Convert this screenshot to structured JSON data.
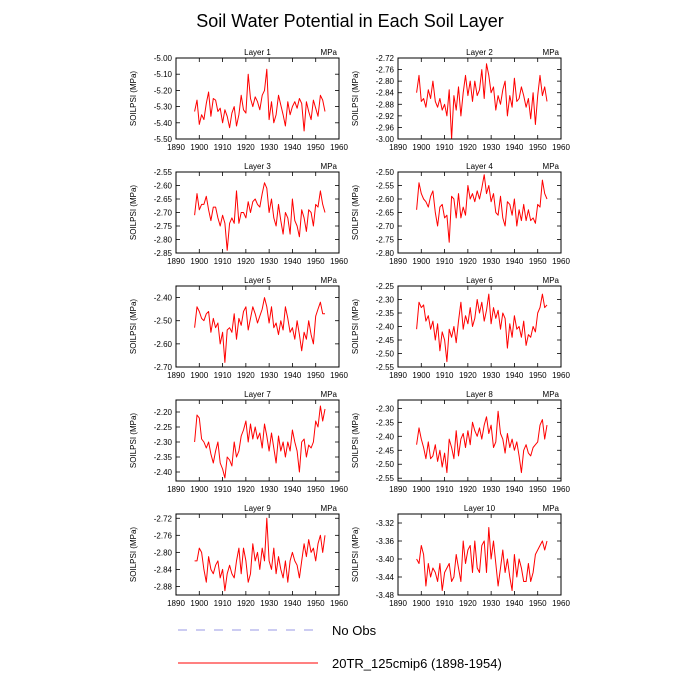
{
  "title": "Soil Water Potential in Each Soil Layer",
  "legend": {
    "items": [
      {
        "label": "No Obs",
        "color": "#9a9ae6",
        "style": "dashed"
      },
      {
        "label": "20TR_125cmip6 (1898-1954)",
        "color": "#ff0000",
        "style": "solid"
      }
    ]
  },
  "chart_data": [
    {
      "type": "line",
      "title": "Layer 1",
      "units": "MPa",
      "ylabel": "SOILPSI  (MPa)",
      "xlim": [
        1890,
        1960
      ],
      "xticks": [
        1890,
        1900,
        1910,
        1920,
        1930,
        1940,
        1950,
        1960
      ],
      "ylim": [
        -5.5,
        -5.0
      ],
      "yticks": [
        -5.5,
        -5.4,
        -5.3,
        -5.2,
        -5.1,
        -5.0
      ],
      "ytick_labels": [
        "-5.50",
        "-5.40",
        "-5.30",
        "-5.20",
        "-5.10",
        "-5.00"
      ],
      "series": [
        {
          "name": "20TR_125cmip6 (1898-1954)",
          "color": "#ff0000",
          "x_start": 1898,
          "values": [
            -5.33,
            -5.26,
            -5.41,
            -5.35,
            -5.38,
            -5.28,
            -5.21,
            -5.36,
            -5.25,
            -5.26,
            -5.33,
            -5.31,
            -5.4,
            -5.32,
            -5.36,
            -5.43,
            -5.34,
            -5.3,
            -5.42,
            -5.35,
            -5.23,
            -5.32,
            -5.34,
            -5.1,
            -5.25,
            -5.3,
            -5.24,
            -5.27,
            -5.32,
            -5.23,
            -5.2,
            -5.07,
            -5.38,
            -5.27,
            -5.4,
            -5.35,
            -5.23,
            -5.29,
            -5.35,
            -5.42,
            -5.27,
            -5.35,
            -5.3,
            -5.27,
            -5.31,
            -5.25,
            -5.28,
            -5.45,
            -5.27,
            -5.33,
            -5.38,
            -5.26,
            -5.31,
            -5.36,
            -5.23,
            -5.26,
            -5.33
          ]
        }
      ]
    },
    {
      "type": "line",
      "title": "Layer 2",
      "units": "MPa",
      "ylabel": "SOILPSI  (MPa)",
      "xlim": [
        1890,
        1960
      ],
      "xticks": [
        1890,
        1900,
        1910,
        1920,
        1930,
        1940,
        1950,
        1960
      ],
      "ylim": [
        -3.0,
        -2.72
      ],
      "yticks": [
        -3.0,
        -2.96,
        -2.92,
        -2.88,
        -2.84,
        -2.8,
        -2.76,
        -2.72
      ],
      "ytick_labels": [
        "-3.00",
        "-2.96",
        "-2.92",
        "-2.88",
        "-2.84",
        "-2.80",
        "-2.76",
        "-2.72"
      ],
      "series": [
        {
          "name": "20TR_125cmip6 (1898-1954)",
          "color": "#ff0000",
          "x_start": 1898,
          "values": [
            -2.84,
            -2.78,
            -2.87,
            -2.86,
            -2.89,
            -2.83,
            -2.86,
            -2.8,
            -2.87,
            -2.89,
            -2.86,
            -2.9,
            -2.88,
            -2.92,
            -2.83,
            -3.0,
            -2.85,
            -2.9,
            -2.82,
            -2.92,
            -2.84,
            -2.78,
            -2.85,
            -2.8,
            -2.87,
            -2.8,
            -2.85,
            -2.83,
            -2.76,
            -2.86,
            -2.74,
            -2.78,
            -2.84,
            -2.82,
            -2.9,
            -2.85,
            -2.88,
            -2.83,
            -2.8,
            -2.92,
            -2.85,
            -2.89,
            -2.79,
            -2.87,
            -2.86,
            -2.82,
            -2.85,
            -2.89,
            -2.86,
            -2.93,
            -2.84,
            -2.95,
            -2.85,
            -2.78,
            -2.85,
            -2.82,
            -2.87
          ]
        }
      ]
    },
    {
      "type": "line",
      "title": "Layer 3",
      "units": "MPa",
      "ylabel": "SOILPSI  (MPa)",
      "xlim": [
        1890,
        1960
      ],
      "xticks": [
        1890,
        1900,
        1910,
        1920,
        1930,
        1940,
        1950,
        1960
      ],
      "ylim": [
        -2.85,
        -2.55
      ],
      "yticks": [
        -2.85,
        -2.8,
        -2.75,
        -2.7,
        -2.65,
        -2.6,
        -2.55
      ],
      "ytick_labels": [
        "-2.85",
        "-2.80",
        "-2.75",
        "-2.70",
        "-2.65",
        "-2.60",
        "-2.55"
      ],
      "series": [
        {
          "name": "20TR_125cmip6 (1898-1954)",
          "color": "#ff0000",
          "x_start": 1898,
          "values": [
            -2.71,
            -2.63,
            -2.69,
            -2.67,
            -2.67,
            -2.64,
            -2.69,
            -2.73,
            -2.68,
            -2.68,
            -2.72,
            -2.75,
            -2.71,
            -2.74,
            -2.84,
            -2.74,
            -2.72,
            -2.74,
            -2.62,
            -2.74,
            -2.7,
            -2.7,
            -2.72,
            -2.66,
            -2.7,
            -2.66,
            -2.65,
            -2.67,
            -2.68,
            -2.63,
            -2.59,
            -2.61,
            -2.7,
            -2.65,
            -2.72,
            -2.75,
            -2.67,
            -2.73,
            -2.78,
            -2.7,
            -2.72,
            -2.78,
            -2.65,
            -2.73,
            -2.75,
            -2.79,
            -2.69,
            -2.72,
            -2.77,
            -2.69,
            -2.7,
            -2.75,
            -2.67,
            -2.68,
            -2.62,
            -2.67,
            -2.7
          ]
        }
      ]
    },
    {
      "type": "line",
      "title": "Layer 4",
      "units": "MPa",
      "ylabel": "SOILPSI  (MPa)",
      "xlim": [
        1890,
        1960
      ],
      "xticks": [
        1890,
        1900,
        1910,
        1920,
        1930,
        1940,
        1950,
        1960
      ],
      "ylim": [
        -2.8,
        -2.5
      ],
      "yticks": [
        -2.8,
        -2.75,
        -2.7,
        -2.65,
        -2.6,
        -2.55,
        -2.5
      ],
      "ytick_labels": [
        "-2.80",
        "-2.75",
        "-2.70",
        "-2.65",
        "-2.60",
        "-2.55",
        "-2.50"
      ],
      "series": [
        {
          "name": "20TR_125cmip6 (1898-1954)",
          "color": "#ff0000",
          "x_start": 1898,
          "values": [
            -2.64,
            -2.54,
            -2.58,
            -2.6,
            -2.61,
            -2.63,
            -2.59,
            -2.57,
            -2.65,
            -2.7,
            -2.63,
            -2.62,
            -2.67,
            -2.66,
            -2.76,
            -2.59,
            -2.6,
            -2.67,
            -2.58,
            -2.67,
            -2.63,
            -2.66,
            -2.55,
            -2.6,
            -2.58,
            -2.61,
            -2.57,
            -2.6,
            -2.56,
            -2.51,
            -2.58,
            -2.55,
            -2.61,
            -2.58,
            -2.65,
            -2.66,
            -2.59,
            -2.67,
            -2.7,
            -2.61,
            -2.62,
            -2.66,
            -2.6,
            -2.7,
            -2.64,
            -2.68,
            -2.62,
            -2.68,
            -2.64,
            -2.68,
            -2.67,
            -2.69,
            -2.62,
            -2.63,
            -2.53,
            -2.58,
            -2.6
          ]
        }
      ]
    },
    {
      "type": "line",
      "title": "Layer 5",
      "units": "MPa",
      "ylabel": "SOILPSI  (MPa)",
      "xlim": [
        1890,
        1960
      ],
      "xticks": [
        1890,
        1900,
        1910,
        1920,
        1930,
        1940,
        1950,
        1960
      ],
      "ylim": [
        -2.7,
        -2.35
      ],
      "yticks": [
        -2.7,
        -2.6,
        -2.5,
        -2.4
      ],
      "ytick_labels": [
        "-2.70",
        "-2.60",
        "-2.50",
        "-2.40"
      ],
      "series": [
        {
          "name": "20TR_125cmip6 (1898-1954)",
          "color": "#ff0000",
          "x_start": 1898,
          "values": [
            -2.53,
            -2.44,
            -2.46,
            -2.49,
            -2.5,
            -2.47,
            -2.46,
            -2.55,
            -2.49,
            -2.53,
            -2.51,
            -2.6,
            -2.55,
            -2.68,
            -2.54,
            -2.53,
            -2.55,
            -2.47,
            -2.58,
            -2.49,
            -2.52,
            -2.46,
            -2.44,
            -2.54,
            -2.49,
            -2.44,
            -2.47,
            -2.51,
            -2.48,
            -2.45,
            -2.4,
            -2.44,
            -2.51,
            -2.44,
            -2.53,
            -2.51,
            -2.56,
            -2.5,
            -2.54,
            -2.44,
            -2.49,
            -2.55,
            -2.53,
            -2.58,
            -2.5,
            -2.56,
            -2.63,
            -2.55,
            -2.58,
            -2.5,
            -2.56,
            -2.6,
            -2.48,
            -2.45,
            -2.42,
            -2.47,
            -2.47
          ]
        }
      ]
    },
    {
      "type": "line",
      "title": "Layer 6",
      "units": "MPa",
      "ylabel": "SOILPSI  (MPa)",
      "xlim": [
        1890,
        1960
      ],
      "xticks": [
        1890,
        1900,
        1910,
        1920,
        1930,
        1940,
        1950,
        1960
      ],
      "ylim": [
        -2.55,
        -2.25
      ],
      "yticks": [
        -2.55,
        -2.5,
        -2.45,
        -2.4,
        -2.35,
        -2.3,
        -2.25
      ],
      "ytick_labels": [
        "-2.55",
        "-2.50",
        "-2.45",
        "-2.40",
        "-2.35",
        "-2.30",
        "-2.25"
      ],
      "series": [
        {
          "name": "20TR_125cmip6 (1898-1954)",
          "color": "#ff0000",
          "x_start": 1898,
          "values": [
            -2.41,
            -2.31,
            -2.33,
            -2.32,
            -2.38,
            -2.36,
            -2.41,
            -2.38,
            -2.45,
            -2.39,
            -2.49,
            -2.42,
            -2.45,
            -2.53,
            -2.41,
            -2.44,
            -2.4,
            -2.46,
            -2.38,
            -2.31,
            -2.41,
            -2.36,
            -2.39,
            -2.33,
            -2.4,
            -2.37,
            -2.3,
            -2.35,
            -2.31,
            -2.38,
            -2.34,
            -2.28,
            -2.39,
            -2.33,
            -2.37,
            -2.34,
            -2.41,
            -2.35,
            -2.37,
            -2.48,
            -2.39,
            -2.44,
            -2.36,
            -2.41,
            -2.4,
            -2.44,
            -2.38,
            -2.47,
            -2.43,
            -2.44,
            -2.4,
            -2.42,
            -2.35,
            -2.33,
            -2.28,
            -2.33,
            -2.32
          ]
        }
      ]
    },
    {
      "type": "line",
      "title": "Layer 7",
      "units": "MPa",
      "ylabel": "SOILPSI  (MPa)",
      "xlim": [
        1890,
        1960
      ],
      "xticks": [
        1890,
        1900,
        1910,
        1920,
        1930,
        1940,
        1950,
        1960
      ],
      "ylim": [
        -2.43,
        -2.16
      ],
      "yticks": [
        -2.4,
        -2.35,
        -2.3,
        -2.25,
        -2.2
      ],
      "ytick_labels": [
        "-2.40",
        "-2.35",
        "-2.30",
        "-2.25",
        "-2.20"
      ],
      "series": [
        {
          "name": "20TR_125cmip6 (1898-1954)",
          "color": "#ff0000",
          "x_start": 1898,
          "values": [
            -2.3,
            -2.21,
            -2.22,
            -2.29,
            -2.3,
            -2.32,
            -2.3,
            -2.34,
            -2.37,
            -2.33,
            -2.3,
            -2.37,
            -2.39,
            -2.42,
            -2.35,
            -2.36,
            -2.38,
            -2.3,
            -2.35,
            -2.33,
            -2.28,
            -2.26,
            -2.23,
            -2.3,
            -2.24,
            -2.29,
            -2.25,
            -2.29,
            -2.27,
            -2.32,
            -2.24,
            -2.28,
            -2.33,
            -2.27,
            -2.32,
            -2.37,
            -2.28,
            -2.33,
            -2.3,
            -2.35,
            -2.3,
            -2.33,
            -2.26,
            -2.3,
            -2.33,
            -2.4,
            -2.3,
            -2.29,
            -2.35,
            -2.31,
            -2.32,
            -2.3,
            -2.23,
            -2.25,
            -2.18,
            -2.23,
            -2.19
          ]
        }
      ]
    },
    {
      "type": "line",
      "title": "Layer 8",
      "units": "MPa",
      "ylabel": "SOILPSI  (MPa)",
      "xlim": [
        1890,
        1960
      ],
      "xticks": [
        1890,
        1900,
        1910,
        1920,
        1930,
        1940,
        1950,
        1960
      ],
      "ylim": [
        -2.56,
        -2.27
      ],
      "yticks": [
        -2.55,
        -2.5,
        -2.45,
        -2.4,
        -2.35,
        -2.3
      ],
      "ytick_labels": [
        "-2.55",
        "-2.50",
        "-2.45",
        "-2.40",
        "-2.35",
        "-2.30"
      ],
      "series": [
        {
          "name": "20TR_125cmip6 (1898-1954)",
          "color": "#ff0000",
          "x_start": 1898,
          "values": [
            -2.43,
            -2.37,
            -2.41,
            -2.44,
            -2.48,
            -2.42,
            -2.48,
            -2.47,
            -2.43,
            -2.49,
            -2.45,
            -2.51,
            -2.46,
            -2.53,
            -2.41,
            -2.44,
            -2.48,
            -2.38,
            -2.47,
            -2.41,
            -2.39,
            -2.44,
            -2.38,
            -2.43,
            -2.35,
            -2.38,
            -2.4,
            -2.37,
            -2.41,
            -2.36,
            -2.33,
            -2.39,
            -2.36,
            -2.44,
            -2.42,
            -2.31,
            -2.39,
            -2.41,
            -2.46,
            -2.39,
            -2.44,
            -2.41,
            -2.45,
            -2.42,
            -2.47,
            -2.53,
            -2.45,
            -2.43,
            -2.46,
            -2.47,
            -2.44,
            -2.43,
            -2.42,
            -2.36,
            -2.34,
            -2.41,
            -2.36
          ]
        }
      ]
    },
    {
      "type": "line",
      "title": "Layer 9",
      "units": "MPa",
      "ylabel": "SOILPSI  (MPa)",
      "xlim": [
        1890,
        1960
      ],
      "xticks": [
        1890,
        1900,
        1910,
        1920,
        1930,
        1940,
        1950,
        1960
      ],
      "ylim": [
        -2.9,
        -2.71
      ],
      "yticks": [
        -2.88,
        -2.84,
        -2.8,
        -2.76,
        -2.72
      ],
      "ytick_labels": [
        "-2.88",
        "-2.84",
        "-2.80",
        "-2.76",
        "-2.72"
      ],
      "series": [
        {
          "name": "20TR_125cmip6 (1898-1954)",
          "color": "#ff0000",
          "x_start": 1898,
          "values": [
            -2.82,
            -2.82,
            -2.79,
            -2.8,
            -2.84,
            -2.87,
            -2.81,
            -2.84,
            -2.85,
            -2.83,
            -2.82,
            -2.86,
            -2.84,
            -2.89,
            -2.85,
            -2.83,
            -2.85,
            -2.86,
            -2.82,
            -2.79,
            -2.85,
            -2.79,
            -2.82,
            -2.87,
            -2.85,
            -2.78,
            -2.82,
            -2.8,
            -2.84,
            -2.79,
            -2.82,
            -2.72,
            -2.82,
            -2.84,
            -2.79,
            -2.85,
            -2.81,
            -2.84,
            -2.86,
            -2.82,
            -2.87,
            -2.82,
            -2.8,
            -2.82,
            -2.83,
            -2.86,
            -2.82,
            -2.78,
            -2.81,
            -2.77,
            -2.8,
            -2.79,
            -2.82,
            -2.78,
            -2.76,
            -2.8,
            -2.76
          ]
        }
      ]
    },
    {
      "type": "line",
      "title": "Layer 10",
      "units": "MPa",
      "ylabel": "SOILPSI  (MPa)",
      "xlim": [
        1890,
        1960
      ],
      "xticks": [
        1890,
        1900,
        1910,
        1920,
        1930,
        1940,
        1950,
        1960
      ],
      "ylim": [
        -3.48,
        -3.3
      ],
      "yticks": [
        -3.48,
        -3.44,
        -3.4,
        -3.36,
        -3.32
      ],
      "ytick_labels": [
        "-3.48",
        "-3.44",
        "-3.40",
        "-3.36",
        "-3.32"
      ],
      "series": [
        {
          "name": "20TR_125cmip6 (1898-1954)",
          "color": "#ff0000",
          "x_start": 1898,
          "values": [
            -3.4,
            -3.41,
            -3.37,
            -3.39,
            -3.46,
            -3.41,
            -3.44,
            -3.42,
            -3.43,
            -3.45,
            -3.41,
            -3.47,
            -3.43,
            -3.42,
            -3.41,
            -3.45,
            -3.44,
            -3.39,
            -3.42,
            -3.45,
            -3.36,
            -3.41,
            -3.38,
            -3.37,
            -3.43,
            -3.36,
            -3.42,
            -3.43,
            -3.37,
            -3.36,
            -3.43,
            -3.33,
            -3.4,
            -3.36,
            -3.41,
            -3.46,
            -3.42,
            -3.38,
            -3.43,
            -3.4,
            -3.44,
            -3.47,
            -3.39,
            -3.44,
            -3.4,
            -3.42,
            -3.45,
            -3.45,
            -3.41,
            -3.45,
            -3.43,
            -3.39,
            -3.38,
            -3.37,
            -3.36,
            -3.38,
            -3.36
          ]
        }
      ]
    }
  ]
}
